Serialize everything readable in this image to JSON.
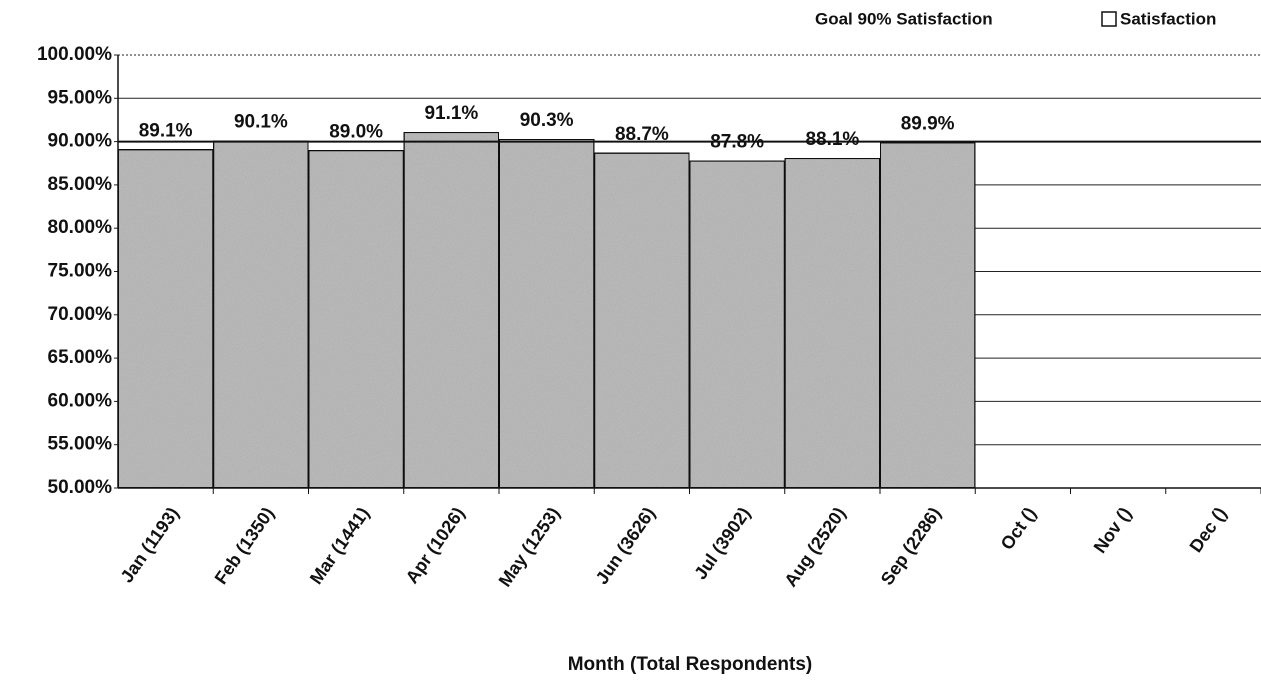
{
  "chart_data": {
    "type": "bar",
    "goal_label": "Goal 90% Satisfaction",
    "goal": 90,
    "x_label": "Month (Total Respondents)",
    "categories": [
      "Jan (1193)",
      "Feb (1350)",
      "Mar (1441)",
      "Apr (1026)",
      "May (1253)",
      "Jun (3626)",
      "Jul (3902)",
      "Aug (2520)",
      "Sep (2286)",
      "Oct ()",
      "Nov ()",
      "Dec ()"
    ],
    "series": [
      {
        "name": "Satisfaction",
        "color": "#bdbdbd",
        "values": [
          89.1,
          90.1,
          89.0,
          91.1,
          90.3,
          88.7,
          87.8,
          88.1,
          89.9,
          null,
          null,
          null
        ],
        "value_labels": [
          "89.1%",
          "90.1%",
          "89.0%",
          "91.1%",
          "90.3%",
          "88.7%",
          "87.8%",
          "88.1%",
          "89.9%",
          null,
          null,
          null
        ]
      }
    ],
    "ylim": [
      50,
      100
    ],
    "yticks": [
      {
        "value": 50,
        "label": "50.00%"
      },
      {
        "value": 55,
        "label": "55.00%"
      },
      {
        "value": 60,
        "label": "60.00%"
      },
      {
        "value": 65,
        "label": "65.00%"
      },
      {
        "value": 70,
        "label": "70.00%"
      },
      {
        "value": 75,
        "label": "75.00%"
      },
      {
        "value": 80,
        "label": "80.00%"
      },
      {
        "value": 85,
        "label": "85.00%"
      },
      {
        "value": 90,
        "label": "90.00%"
      },
      {
        "value": 95,
        "label": "95.00%"
      },
      {
        "value": 100,
        "label": "100.00%"
      }
    ],
    "grid": true
  }
}
